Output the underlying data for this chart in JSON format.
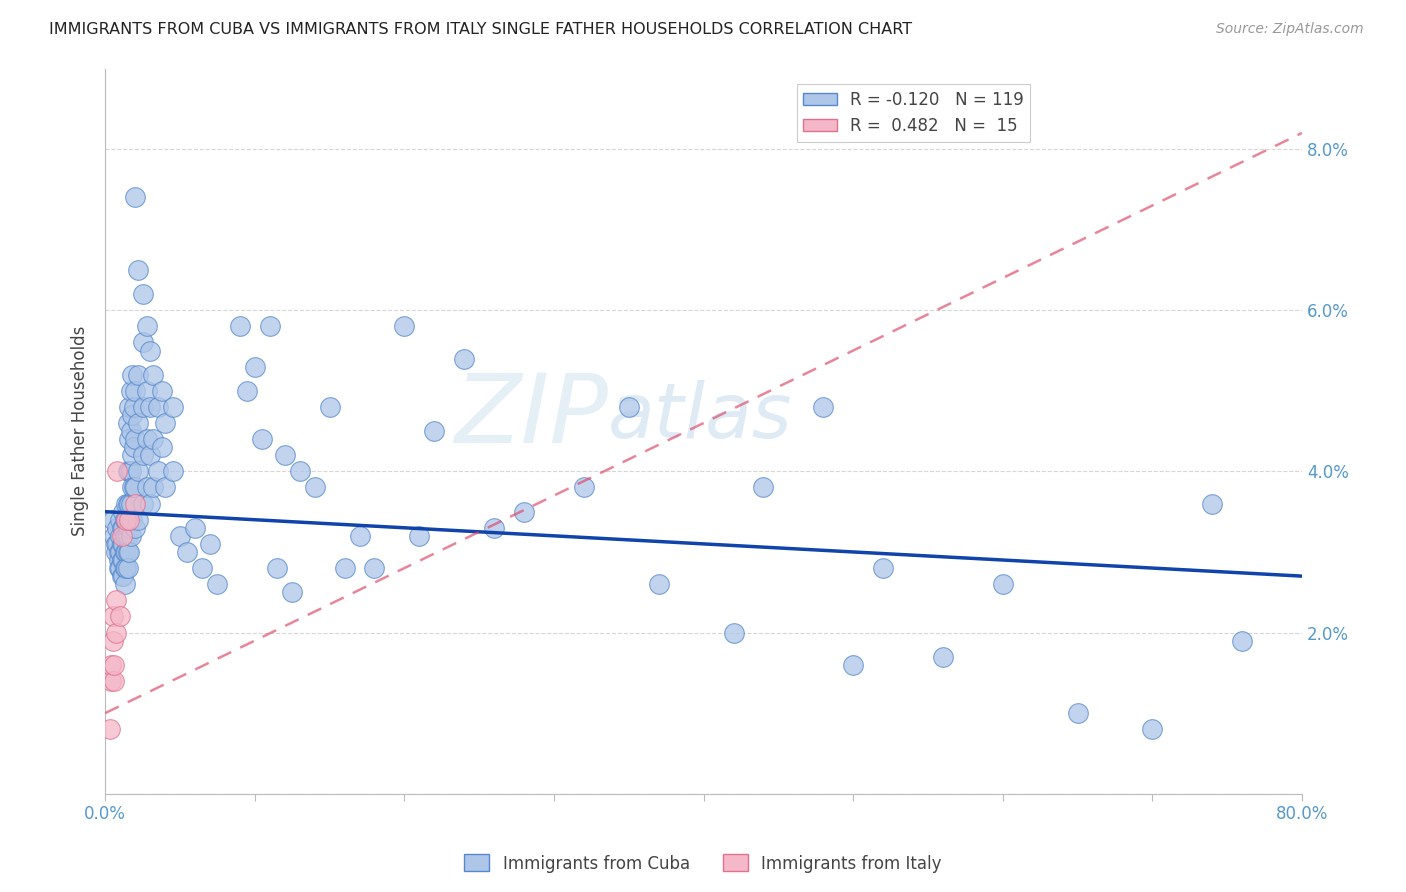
{
  "title": "IMMIGRANTS FROM CUBA VS IMMIGRANTS FROM ITALY SINGLE FATHER HOUSEHOLDS CORRELATION CHART",
  "source": "Source: ZipAtlas.com",
  "ylabel": "Single Father Households",
  "xlim": [
    0.0,
    0.8
  ],
  "ylim": [
    0.0,
    0.09
  ],
  "yticks": [
    0.0,
    0.02,
    0.04,
    0.06,
    0.08
  ],
  "ytick_labels_right": [
    "",
    "2.0%",
    "4.0%",
    "6.0%",
    "8.0%"
  ],
  "xticks": [
    0.0,
    0.1,
    0.2,
    0.3,
    0.4,
    0.5,
    0.6,
    0.7,
    0.8
  ],
  "xtick_labels": [
    "0.0%",
    "",
    "",
    "",
    "",
    "",
    "",
    "",
    "80.0%"
  ],
  "cuba_color": "#aec6e8",
  "italy_color": "#f4b8c8",
  "cuba_edge_color": "#5588cc",
  "italy_edge_color": "#e07090",
  "trend_cuba_color": "#1144aa",
  "trend_italy_color": "#dd4466",
  "watermark_text": "ZIPatlas",
  "watermark_color": "#d0e4f0",
  "background_color": "#ffffff",
  "grid_color": "#cccccc",
  "title_color": "#222222",
  "axis_label_color": "#444444",
  "tick_label_color": "#5599cc",
  "legend_label_color": "#444444",
  "cuba_scatter": [
    [
      0.005,
      0.034
    ],
    [
      0.006,
      0.032
    ],
    [
      0.007,
      0.031
    ],
    [
      0.007,
      0.03
    ],
    [
      0.008,
      0.033
    ],
    [
      0.008,
      0.031
    ],
    [
      0.009,
      0.03
    ],
    [
      0.009,
      0.029
    ],
    [
      0.009,
      0.028
    ],
    [
      0.01,
      0.034
    ],
    [
      0.01,
      0.032
    ],
    [
      0.01,
      0.03
    ],
    [
      0.01,
      0.028
    ],
    [
      0.011,
      0.033
    ],
    [
      0.011,
      0.031
    ],
    [
      0.011,
      0.029
    ],
    [
      0.011,
      0.027
    ],
    [
      0.012,
      0.035
    ],
    [
      0.012,
      0.033
    ],
    [
      0.012,
      0.031
    ],
    [
      0.012,
      0.029
    ],
    [
      0.012,
      0.027
    ],
    [
      0.013,
      0.034
    ],
    [
      0.013,
      0.032
    ],
    [
      0.013,
      0.03
    ],
    [
      0.013,
      0.028
    ],
    [
      0.013,
      0.026
    ],
    [
      0.014,
      0.036
    ],
    [
      0.014,
      0.034
    ],
    [
      0.014,
      0.032
    ],
    [
      0.014,
      0.03
    ],
    [
      0.014,
      0.028
    ],
    [
      0.015,
      0.046
    ],
    [
      0.015,
      0.04
    ],
    [
      0.015,
      0.036
    ],
    [
      0.015,
      0.034
    ],
    [
      0.015,
      0.032
    ],
    [
      0.015,
      0.03
    ],
    [
      0.015,
      0.028
    ],
    [
      0.016,
      0.048
    ],
    [
      0.016,
      0.044
    ],
    [
      0.016,
      0.04
    ],
    [
      0.016,
      0.036
    ],
    [
      0.016,
      0.033
    ],
    [
      0.016,
      0.03
    ],
    [
      0.017,
      0.05
    ],
    [
      0.017,
      0.045
    ],
    [
      0.017,
      0.04
    ],
    [
      0.017,
      0.036
    ],
    [
      0.017,
      0.032
    ],
    [
      0.018,
      0.052
    ],
    [
      0.018,
      0.047
    ],
    [
      0.018,
      0.042
    ],
    [
      0.018,
      0.038
    ],
    [
      0.018,
      0.034
    ],
    [
      0.019,
      0.048
    ],
    [
      0.019,
      0.043
    ],
    [
      0.019,
      0.038
    ],
    [
      0.02,
      0.074
    ],
    [
      0.02,
      0.05
    ],
    [
      0.02,
      0.044
    ],
    [
      0.02,
      0.038
    ],
    [
      0.02,
      0.033
    ],
    [
      0.022,
      0.065
    ],
    [
      0.022,
      0.052
    ],
    [
      0.022,
      0.046
    ],
    [
      0.022,
      0.04
    ],
    [
      0.022,
      0.034
    ],
    [
      0.025,
      0.062
    ],
    [
      0.025,
      0.056
    ],
    [
      0.025,
      0.048
    ],
    [
      0.025,
      0.042
    ],
    [
      0.025,
      0.036
    ],
    [
      0.028,
      0.058
    ],
    [
      0.028,
      0.05
    ],
    [
      0.028,
      0.044
    ],
    [
      0.028,
      0.038
    ],
    [
      0.03,
      0.055
    ],
    [
      0.03,
      0.048
    ],
    [
      0.03,
      0.042
    ],
    [
      0.03,
      0.036
    ],
    [
      0.032,
      0.052
    ],
    [
      0.032,
      0.044
    ],
    [
      0.032,
      0.038
    ],
    [
      0.035,
      0.048
    ],
    [
      0.035,
      0.04
    ],
    [
      0.038,
      0.05
    ],
    [
      0.038,
      0.043
    ],
    [
      0.04,
      0.046
    ],
    [
      0.04,
      0.038
    ],
    [
      0.045,
      0.048
    ],
    [
      0.045,
      0.04
    ],
    [
      0.05,
      0.032
    ],
    [
      0.055,
      0.03
    ],
    [
      0.06,
      0.033
    ],
    [
      0.065,
      0.028
    ],
    [
      0.07,
      0.031
    ],
    [
      0.075,
      0.026
    ],
    [
      0.09,
      0.058
    ],
    [
      0.095,
      0.05
    ],
    [
      0.1,
      0.053
    ],
    [
      0.105,
      0.044
    ],
    [
      0.11,
      0.058
    ],
    [
      0.115,
      0.028
    ],
    [
      0.12,
      0.042
    ],
    [
      0.125,
      0.025
    ],
    [
      0.13,
      0.04
    ],
    [
      0.14,
      0.038
    ],
    [
      0.15,
      0.048
    ],
    [
      0.16,
      0.028
    ],
    [
      0.17,
      0.032
    ],
    [
      0.18,
      0.028
    ],
    [
      0.2,
      0.058
    ],
    [
      0.21,
      0.032
    ],
    [
      0.22,
      0.045
    ],
    [
      0.24,
      0.054
    ],
    [
      0.26,
      0.033
    ],
    [
      0.28,
      0.035
    ],
    [
      0.32,
      0.038
    ],
    [
      0.35,
      0.048
    ],
    [
      0.37,
      0.026
    ],
    [
      0.42,
      0.02
    ],
    [
      0.44,
      0.038
    ],
    [
      0.48,
      0.048
    ],
    [
      0.5,
      0.016
    ],
    [
      0.52,
      0.028
    ],
    [
      0.56,
      0.017
    ],
    [
      0.6,
      0.026
    ],
    [
      0.65,
      0.01
    ],
    [
      0.7,
      0.008
    ],
    [
      0.74,
      0.036
    ],
    [
      0.76,
      0.019
    ]
  ],
  "italy_scatter": [
    [
      0.003,
      0.008
    ],
    [
      0.004,
      0.014
    ],
    [
      0.004,
      0.016
    ],
    [
      0.005,
      0.019
    ],
    [
      0.005,
      0.022
    ],
    [
      0.006,
      0.014
    ],
    [
      0.006,
      0.016
    ],
    [
      0.007,
      0.02
    ],
    [
      0.007,
      0.024
    ],
    [
      0.008,
      0.04
    ],
    [
      0.01,
      0.022
    ],
    [
      0.011,
      0.032
    ],
    [
      0.014,
      0.034
    ],
    [
      0.016,
      0.034
    ],
    [
      0.02,
      0.036
    ]
  ],
  "cuba_trend": {
    "x_start": 0.0,
    "x_end": 0.8,
    "y_start": 0.035,
    "y_end": 0.027
  },
  "italy_trend_dashed": {
    "x_start": 0.0,
    "x_end": 0.8,
    "y_start": 0.01,
    "y_end": 0.082
  }
}
